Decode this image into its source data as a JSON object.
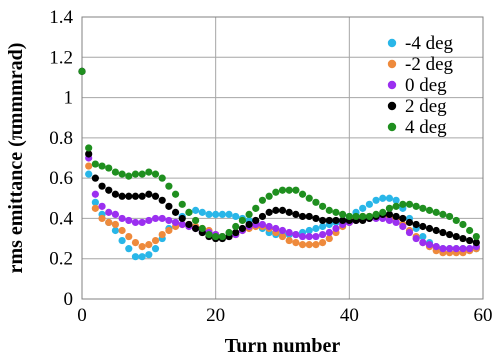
{
  "chart_data": {
    "type": "scatter",
    "xlabel": "Turn number",
    "ylabel": "rms emittance (πmmmrad)",
    "xlim": [
      0,
      60
    ],
    "ylim": [
      0,
      1.4
    ],
    "xticks": [
      0,
      20,
      40,
      60
    ],
    "yticks": [
      0,
      0.2,
      0.4,
      0.6,
      0.8,
      1,
      1.2,
      1.4
    ],
    "xtick_labels": [
      "0",
      "20",
      "40",
      "60"
    ],
    "ytick_labels": [
      "0",
      "0.2",
      "0.4",
      "0.6",
      "0.8",
      "1",
      "1.2",
      "1.4"
    ],
    "grid": true,
    "legend_position": "top-right",
    "x": [
      0,
      1,
      2,
      3,
      4,
      5,
      6,
      7,
      8,
      9,
      10,
      11,
      12,
      13,
      14,
      15,
      16,
      17,
      18,
      19,
      20,
      21,
      22,
      23,
      24,
      25,
      26,
      27,
      28,
      29,
      30,
      31,
      32,
      33,
      34,
      35,
      36,
      37,
      38,
      39,
      40,
      41,
      42,
      43,
      44,
      45,
      46,
      47,
      48,
      49,
      50,
      51,
      52,
      53,
      54,
      55,
      56,
      57,
      58,
      59
    ],
    "series": [
      {
        "name": "-4 deg",
        "color": "#29b6e8",
        "values": [
          1.13,
          0.62,
          0.48,
          0.42,
          0.38,
          0.34,
          0.29,
          0.25,
          0.21,
          0.21,
          0.22,
          0.25,
          0.3,
          0.35,
          0.38,
          0.41,
          0.43,
          0.44,
          0.43,
          0.42,
          0.42,
          0.42,
          0.42,
          0.41,
          0.4,
          0.39,
          0.37,
          0.35,
          0.33,
          0.32,
          0.32,
          0.32,
          0.32,
          0.33,
          0.34,
          0.35,
          0.36,
          0.37,
          0.38,
          0.39,
          0.41,
          0.43,
          0.45,
          0.47,
          0.49,
          0.5,
          0.5,
          0.49,
          0.45,
          0.4,
          0.35,
          0.31,
          0.28,
          0.26,
          0.25,
          0.25,
          0.25,
          0.25,
          0.25,
          0.25
        ]
      },
      {
        "name": "-2 deg",
        "color": "#ee8a3c",
        "values": [
          1.13,
          0.66,
          0.45,
          0.4,
          0.38,
          0.37,
          0.34,
          0.31,
          0.28,
          0.26,
          0.27,
          0.29,
          0.32,
          0.34,
          0.36,
          0.37,
          0.37,
          0.36,
          0.35,
          0.34,
          0.32,
          0.31,
          0.31,
          0.32,
          0.34,
          0.35,
          0.36,
          0.36,
          0.35,
          0.33,
          0.31,
          0.29,
          0.28,
          0.27,
          0.27,
          0.27,
          0.28,
          0.3,
          0.33,
          0.36,
          0.38,
          0.4,
          0.41,
          0.41,
          0.41,
          0.41,
          0.41,
          0.4,
          0.37,
          0.34,
          0.31,
          0.28,
          0.26,
          0.24,
          0.23,
          0.23,
          0.23,
          0.23,
          0.24,
          0.25
        ]
      },
      {
        "name": "0 deg",
        "color": "#9b2ff0",
        "values": [
          1.13,
          0.7,
          0.52,
          0.46,
          0.43,
          0.42,
          0.4,
          0.39,
          0.38,
          0.38,
          0.39,
          0.4,
          0.4,
          0.39,
          0.38,
          0.37,
          0.36,
          0.35,
          0.34,
          0.33,
          0.32,
          0.31,
          0.31,
          0.32,
          0.34,
          0.36,
          0.37,
          0.37,
          0.36,
          0.35,
          0.34,
          0.33,
          0.32,
          0.31,
          0.31,
          0.31,
          0.32,
          0.33,
          0.35,
          0.37,
          0.38,
          0.39,
          0.4,
          0.4,
          0.4,
          0.4,
          0.39,
          0.38,
          0.36,
          0.33,
          0.3,
          0.28,
          0.27,
          0.26,
          0.25,
          0.25,
          0.25,
          0.25,
          0.25,
          0.26
        ]
      },
      {
        "name": "2 deg",
        "color": "#000000",
        "values": [
          1.13,
          0.72,
          0.6,
          0.56,
          0.54,
          0.52,
          0.51,
          0.51,
          0.51,
          0.51,
          0.52,
          0.51,
          0.49,
          0.46,
          0.43,
          0.4,
          0.37,
          0.35,
          0.33,
          0.31,
          0.3,
          0.3,
          0.31,
          0.33,
          0.35,
          0.37,
          0.39,
          0.41,
          0.43,
          0.44,
          0.44,
          0.43,
          0.42,
          0.41,
          0.41,
          0.4,
          0.39,
          0.39,
          0.39,
          0.39,
          0.39,
          0.39,
          0.39,
          0.4,
          0.41,
          0.42,
          0.42,
          0.41,
          0.4,
          0.38,
          0.37,
          0.36,
          0.35,
          0.34,
          0.33,
          0.32,
          0.31,
          0.3,
          0.29,
          0.28
        ]
      },
      {
        "name": "4 deg",
        "color": "#1f8f1f",
        "values": [
          1.13,
          0.75,
          0.67,
          0.66,
          0.65,
          0.63,
          0.62,
          0.61,
          0.62,
          0.62,
          0.63,
          0.62,
          0.6,
          0.56,
          0.52,
          0.47,
          0.43,
          0.39,
          0.35,
          0.32,
          0.31,
          0.31,
          0.33,
          0.36,
          0.39,
          0.42,
          0.45,
          0.49,
          0.51,
          0.53,
          0.54,
          0.54,
          0.54,
          0.52,
          0.5,
          0.48,
          0.46,
          0.44,
          0.43,
          0.42,
          0.41,
          0.41,
          0.41,
          0.41,
          0.42,
          0.43,
          0.45,
          0.46,
          0.47,
          0.47,
          0.46,
          0.45,
          0.44,
          0.43,
          0.42,
          0.41,
          0.39,
          0.37,
          0.34,
          0.31
        ]
      }
    ]
  }
}
